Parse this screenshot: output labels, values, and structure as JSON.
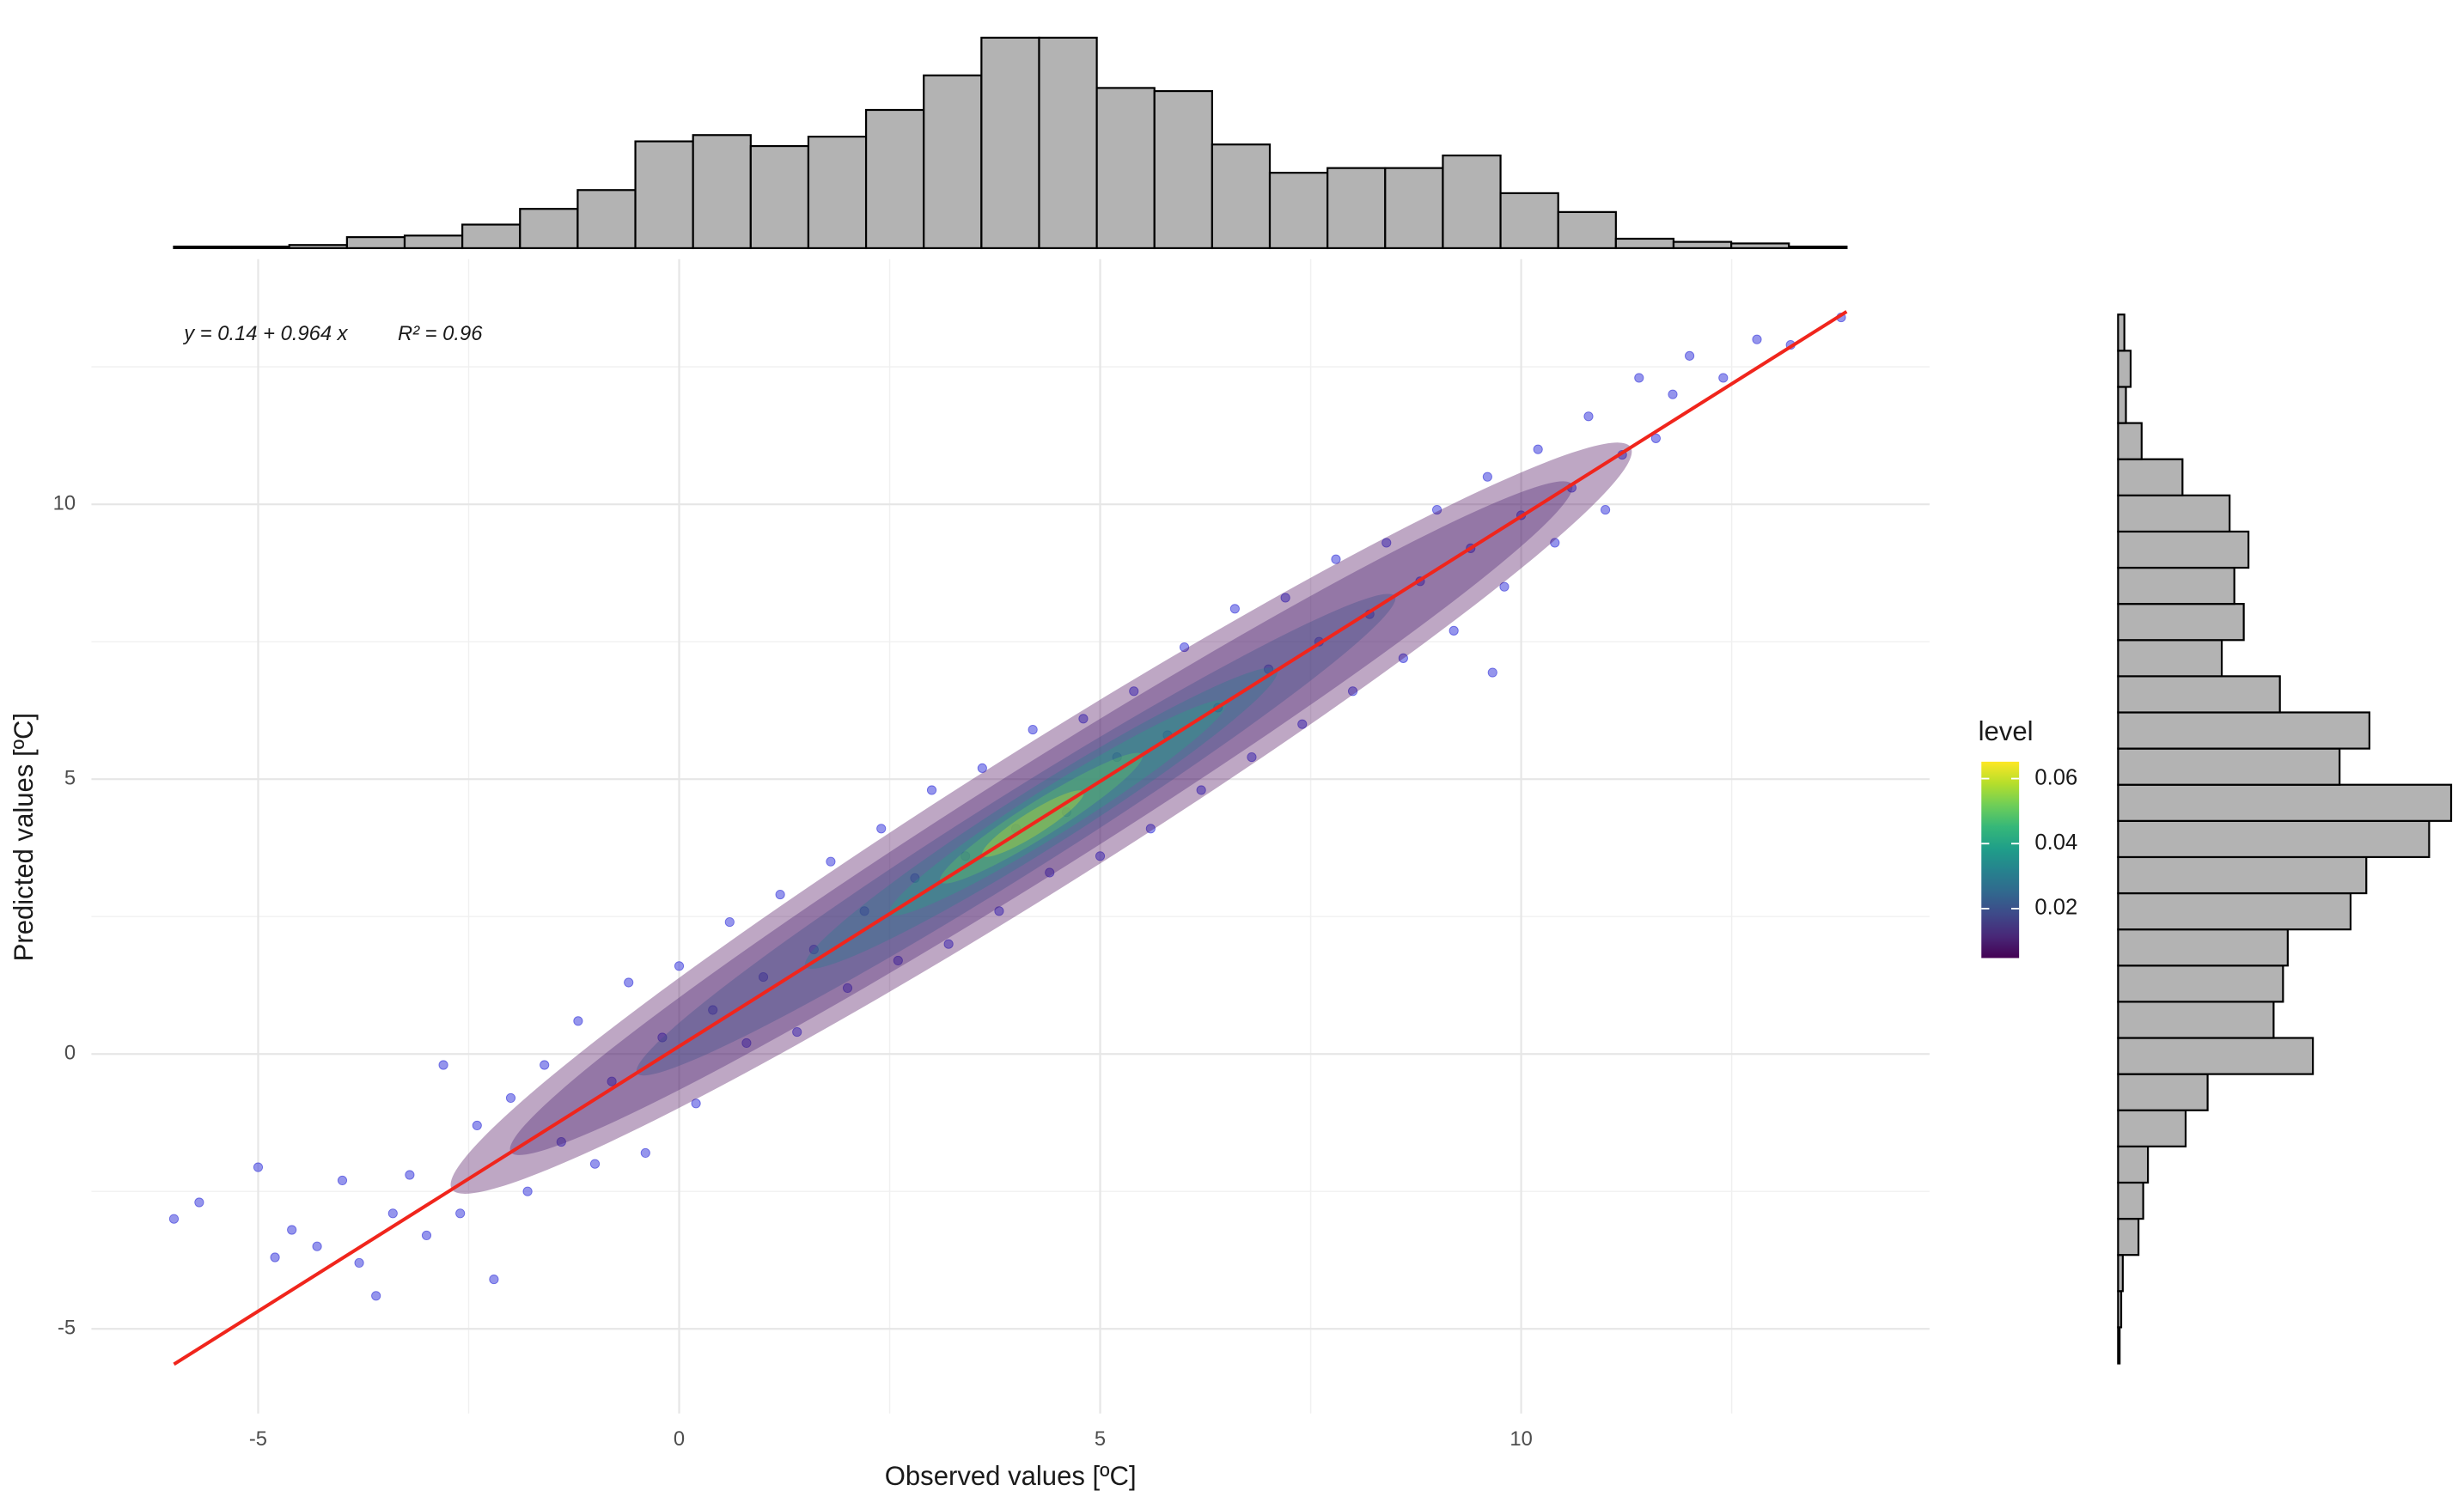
{
  "chart_data": {
    "type": "scatter",
    "x_label": "Observed values [ºC]",
    "y_label": "Predicted values [ºC]",
    "xlim": [
      -6.98,
      14.85
    ],
    "ylim": [
      -6.54,
      14.46
    ],
    "xticks": [
      -5,
      0,
      5,
      10
    ],
    "yticks": [
      -5,
      0,
      5,
      10
    ],
    "xminorticks": [
      -2.5,
      2.5,
      7.5,
      12.5
    ],
    "yminorticks": [
      -2.5,
      2.5,
      7.5,
      12.5
    ],
    "grid": true,
    "points": {
      "color": "#2b2bd9",
      "x": [
        -6.0,
        -5.7,
        -5.0,
        -4.8,
        -4.6,
        -4.3,
        -4.0,
        -3.8,
        -3.6,
        -3.4,
        -3.2,
        -3.0,
        -2.8,
        -2.6,
        -2.4,
        -2.2,
        -2.0,
        -1.8,
        -1.6,
        -1.4,
        -1.2,
        -1.0,
        -0.8,
        -0.6,
        -0.4,
        -0.2,
        0,
        0.2,
        0.4,
        0.6,
        0.8,
        1.0,
        1.2,
        1.4,
        1.6,
        1.8,
        2.0,
        2.2,
        2.4,
        2.6,
        2.8,
        3.0,
        3.2,
        3.4,
        3.6,
        3.8,
        4.0,
        4.2,
        4.4,
        4.6,
        4.8,
        5.0,
        5.2,
        5.4,
        5.6,
        5.8,
        6.0,
        6.2,
        6.4,
        6.6,
        6.8,
        7.0,
        7.2,
        7.4,
        7.6,
        7.8,
        8.0,
        8.2,
        8.4,
        8.6,
        8.8,
        9.0,
        9.2,
        9.4,
        9.6,
        9.8,
        10.0,
        10.2,
        10.4,
        10.6,
        10.8,
        11.0,
        11.2,
        11.4,
        11.6,
        11.8,
        12.0,
        12.4,
        12.8,
        13.2,
        13.8,
        9.66
      ],
      "y": [
        -3.0,
        -2.7,
        -2.06,
        -3.7,
        -3.2,
        -3.5,
        -2.3,
        -3.8,
        -4.4,
        -2.9,
        -2.2,
        -3.3,
        -0.2,
        -2.9,
        -1.3,
        -4.1,
        -0.8,
        -2.5,
        -0.2,
        -1.6,
        0.6,
        -2.0,
        -0.5,
        1.3,
        -1.8,
        0.3,
        1.6,
        -0.9,
        0.8,
        2.4,
        0.2,
        1.4,
        2.9,
        0.4,
        1.9,
        3.5,
        1.2,
        2.6,
        4.1,
        1.7,
        3.2,
        4.8,
        2.0,
        3.6,
        5.2,
        2.6,
        4.1,
        5.9,
        3.3,
        4.4,
        6.1,
        3.6,
        5.4,
        6.6,
        4.1,
        5.8,
        7.4,
        4.8,
        6.3,
        8.1,
        5.4,
        7.0,
        8.3,
        6.0,
        7.5,
        9.0,
        6.6,
        8.0,
        9.3,
        7.2,
        8.6,
        9.9,
        7.7,
        9.2,
        10.5,
        8.5,
        9.8,
        11.0,
        9.3,
        10.3,
        11.6,
        9.9,
        10.9,
        12.3,
        11.2,
        12.0,
        12.7,
        12.3,
        13.0,
        12.9,
        13.4,
        6.94
      ]
    },
    "fit": {
      "color": "#f0251c",
      "intercept": 0.14,
      "slope": 0.964,
      "xrange": [
        -6.0,
        13.865
      ],
      "equation": "y = 0.14 + 0.964 x",
      "r2_label": "R² = 0.96"
    },
    "density": {
      "title": "level",
      "clim": [
        0.0048,
        0.0652
      ],
      "ticks": [
        0.02,
        0.04,
        0.06
      ],
      "colors": [
        "#440154",
        "#482878",
        "#3e4989",
        "#31688e",
        "#26828e",
        "#1f9e89",
        "#35b779",
        "#6ece58",
        "#b5de2b",
        "#fde725"
      ],
      "alpha": 0.35,
      "contours": [
        {
          "level": 0.005,
          "x": 4.3,
          "y": 4.29,
          "dx": 7.0,
          "dy": 1.5
        },
        {
          "level": 0.01,
          "x": 4.3,
          "y": 4.29,
          "dx": 6.3,
          "dy": 1.15
        },
        {
          "level": 0.02,
          "x": 4.0,
          "y": 3.99,
          "dx": 4.5,
          "dy": 0.85
        },
        {
          "level": 0.03,
          "x": 4.3,
          "y": 4.29,
          "dx": 2.8,
          "dy": 0.65
        },
        {
          "level": 0.04,
          "x": 4.5,
          "y": 4.48,
          "dx": 2.0,
          "dy": 0.5
        },
        {
          "level": 0.05,
          "x": 4.3,
          "y": 4.29,
          "dx": 1.2,
          "dy": 0.38
        },
        {
          "level": 0.06,
          "x": 4.2,
          "y": 4.19,
          "dx": 0.6,
          "dy": 0.25
        }
      ]
    },
    "top_histogram": {
      "color": "#b3b3b3",
      "countlim": [
        0,
        134
      ],
      "bins": [
        -6.0,
        -5.315,
        -4.63,
        -3.945,
        -3.26,
        -2.575,
        -1.89,
        -1.205,
        -0.52,
        0.165,
        0.85,
        1.535,
        2.22,
        2.905,
        3.59,
        4.275,
        4.96,
        5.645,
        6.33,
        7.015,
        7.7,
        8.385,
        9.07,
        9.755,
        10.44,
        11.125,
        11.81,
        12.495,
        13.18,
        13.865
      ],
      "counts": [
        1,
        1,
        2,
        7,
        8,
        15,
        25,
        37,
        68,
        72,
        65,
        71,
        88,
        110,
        134,
        134,
        102,
        100,
        66,
        48,
        51,
        51,
        59,
        35,
        23,
        6,
        4,
        3,
        1
      ]
    },
    "right_histogram": {
      "color": "#b3b3b3",
      "countlim": [
        0,
        212
      ],
      "bins": [
        -5.63,
        -4.972,
        -4.314,
        -3.656,
        -2.998,
        -2.34,
        -1.682,
        -1.024,
        -0.366,
        0.292,
        0.95,
        1.608,
        2.266,
        2.924,
        3.582,
        4.24,
        4.898,
        5.556,
        6.214,
        6.872,
        7.53,
        8.188,
        8.846,
        9.504,
        10.162,
        10.82,
        11.478,
        12.136,
        12.794,
        13.452
      ],
      "counts": [
        1,
        2,
        3,
        13,
        16,
        19,
        43,
        57,
        124,
        99,
        105,
        108,
        148,
        158,
        198,
        212,
        141,
        160,
        103,
        66,
        80,
        74,
        83,
        71,
        41,
        15,
        5,
        8,
        4
      ]
    }
  }
}
